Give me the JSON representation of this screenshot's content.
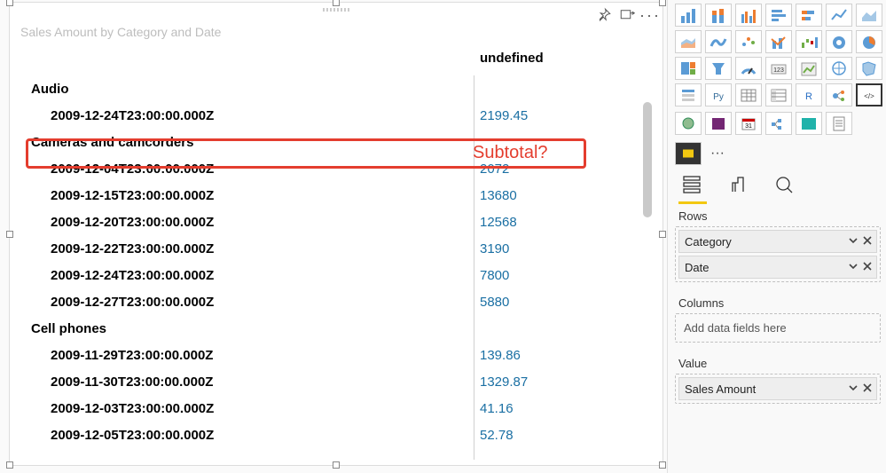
{
  "visual": {
    "title": "Sales Amount by Category and Date",
    "column_header": "undefined",
    "annotation_text": "Subtotal?"
  },
  "matrix": {
    "rows": [
      {
        "type": "category",
        "label": "Audio"
      },
      {
        "type": "date",
        "label": "2009-12-24T23:00:00.000Z",
        "value": "2199.45"
      },
      {
        "type": "category",
        "label": "Cameras and camcorders"
      },
      {
        "type": "date",
        "label": "2009-12-04T23:00:00.000Z",
        "value": "2072"
      },
      {
        "type": "date",
        "label": "2009-12-15T23:00:00.000Z",
        "value": "13680"
      },
      {
        "type": "date",
        "label": "2009-12-20T23:00:00.000Z",
        "value": "12568"
      },
      {
        "type": "date",
        "label": "2009-12-22T23:00:00.000Z",
        "value": "3190"
      },
      {
        "type": "date",
        "label": "2009-12-24T23:00:00.000Z",
        "value": "7800"
      },
      {
        "type": "date",
        "label": "2009-12-27T23:00:00.000Z",
        "value": "5880"
      },
      {
        "type": "category",
        "label": "Cell phones"
      },
      {
        "type": "date",
        "label": "2009-11-29T23:00:00.000Z",
        "value": "139.86"
      },
      {
        "type": "date",
        "label": "2009-11-30T23:00:00.000Z",
        "value": "1329.87"
      },
      {
        "type": "date",
        "label": "2009-12-03T23:00:00.000Z",
        "value": "41.16"
      },
      {
        "type": "date",
        "label": "2009-12-05T23:00:00.000Z",
        "value": "52.78"
      }
    ],
    "value_color": "#1a6fa3",
    "annotation_color": "#e43d2e"
  },
  "viz_gallery": {
    "tiles": [
      "bars",
      "stacked-bar",
      "clustered-bar",
      "horizontal-bar",
      "horizontal-stacked",
      "line",
      "area",
      "stacked-area",
      "ribbon",
      "scatter",
      "combo",
      "waterfall",
      "donut",
      "pie",
      "treemap",
      "funnel",
      "gauge",
      "card",
      "kpi",
      "map",
      "filled-map",
      "slicer",
      "python",
      "table",
      "matrix",
      "r-script",
      "key-influencers",
      "html"
    ],
    "selected_index": 27,
    "extra": [
      "arcgis",
      "power-apps",
      "calendar",
      "decomposition",
      "icon-map",
      "paginated"
    ],
    "custom": [
      "custom-visual-1"
    ]
  },
  "field_wells": {
    "rows_label": "Rows",
    "rows": [
      "Category",
      "Date"
    ],
    "columns_label": "Columns",
    "columns_placeholder": "Add data fields here",
    "value_label": "Value",
    "values": [
      "Sales Amount"
    ]
  },
  "colors": {
    "accent": "#f2c811",
    "border": "#d0d0d0",
    "text": "#222222"
  }
}
